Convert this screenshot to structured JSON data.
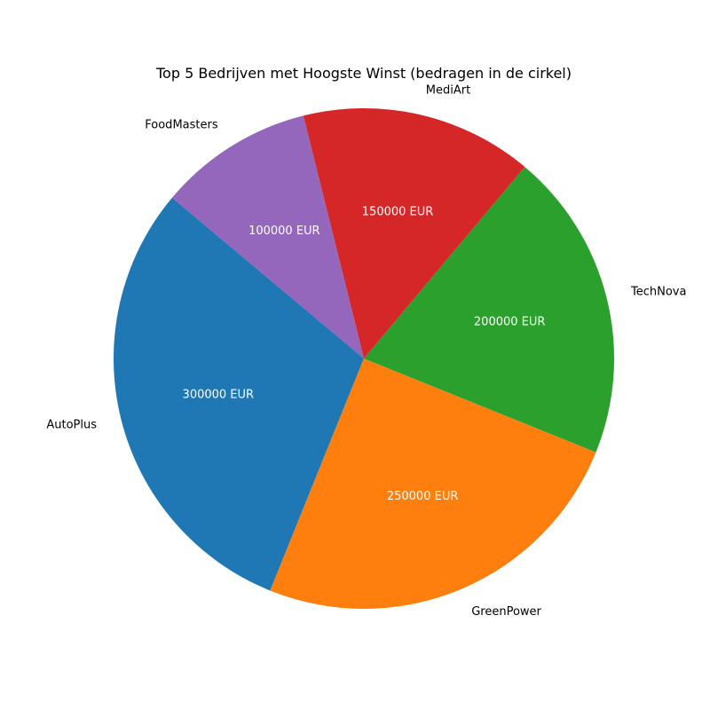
{
  "chart_data": {
    "type": "pie",
    "title": "Top 5 Bedrijven met Hoogste Winst (bedragen in de cirkel)",
    "unit": "EUR",
    "categories": [
      "AutoPlus",
      "GreenPower",
      "TechNova",
      "MediArt",
      "FoodMasters"
    ],
    "values": [
      300000,
      250000,
      200000,
      150000,
      100000
    ],
    "value_labels": [
      "300000 EUR",
      "250000 EUR",
      "200000 EUR",
      "150000 EUR",
      "100000 EUR"
    ],
    "colors": [
      "#1f77b4",
      "#ff7f0e",
      "#2ca02c",
      "#d62728",
      "#9467bd"
    ],
    "value_label_color": "#ffffff",
    "start_angle_deg": 140,
    "direction": "counterclockwise"
  }
}
